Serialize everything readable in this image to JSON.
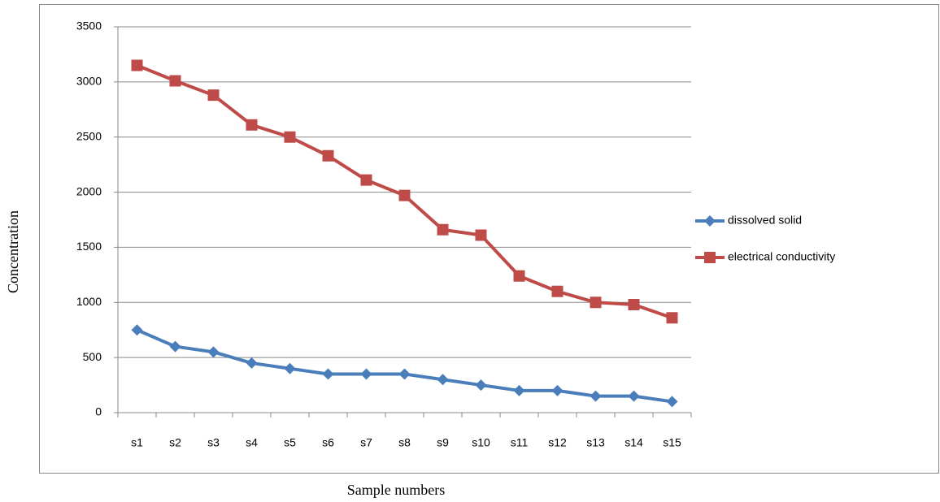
{
  "chart_data": {
    "type": "line",
    "x_label": "Sample numbers",
    "y_label": "Concentration",
    "categories": [
      "s1",
      "s2",
      "s3",
      "s4",
      "s5",
      "s6",
      "s7",
      "s8",
      "s9",
      "s10",
      "s11",
      "s12",
      "s13",
      "s14",
      "s15"
    ],
    "series": [
      {
        "name": "dissolved solid",
        "color": "#4a7ebb",
        "marker": "diamond",
        "values": [
          750,
          600,
          550,
          450,
          400,
          350,
          350,
          350,
          300,
          250,
          200,
          200,
          150,
          150,
          100
        ]
      },
      {
        "name": "electrical conductivity",
        "color": "#be4b48",
        "marker": "square",
        "values": [
          3150,
          3010,
          2880,
          2610,
          2500,
          2330,
          2110,
          1970,
          1660,
          1610,
          1240,
          1100,
          1000,
          980,
          860
        ]
      }
    ],
    "ylim": [
      0,
      3500
    ],
    "yticks": [
      0,
      500,
      1000,
      1500,
      2000,
      2500,
      3000,
      3500
    ],
    "grid": true,
    "legend": "right"
  }
}
